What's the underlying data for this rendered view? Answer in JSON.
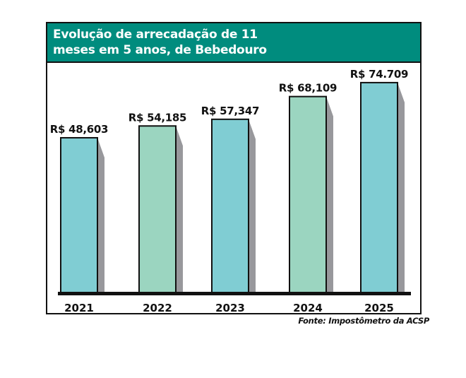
{
  "chart_data": {
    "type": "bar",
    "title": "Evolução de arrecadação de 11\nmeses em 5 anos, de Bebedouro",
    "categories": [
      "2021",
      "2022",
      "2023",
      "2024",
      "2025"
    ],
    "values": [
      48.603,
      54.185,
      57.347,
      68.109,
      74.709
    ],
    "data_labels": [
      "R$ 48,603",
      "R$ 54,185",
      "R$ 57,347",
      "R$ 68,109",
      "R$ 74.709"
    ],
    "colors": [
      "#80cdd3",
      "#9bd5c0",
      "#80cdd3",
      "#9bd5c0",
      "#80cdd3"
    ],
    "xlabel": "",
    "ylabel": "",
    "grid": false,
    "source": "Fonte: Impostômetro da ACSP"
  },
  "colors": {
    "header": "#008c7e",
    "shadow": "#98989c"
  }
}
